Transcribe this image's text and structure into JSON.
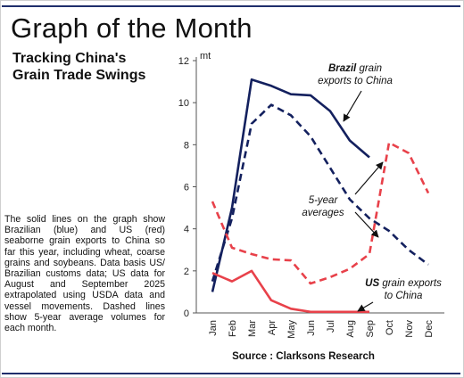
{
  "page_title": "Graph of the Month",
  "subtitle": "Tracking China's Grain Trade Swings",
  "description": "The solid lines on the graph show Brazilian (blue) and US (red) seaborne grain exports to China so far this year, including wheat, coarse grains and soybeans. Data basis US/ Brazilian customs data; US data for August and September 2025 extrapolated using USDA data and vessel movements. Dashed lines show 5-year average volumes for each month.",
  "source": "Source : Clarksons Research",
  "colors": {
    "brazil": "#13205e",
    "us": "#e8414a",
    "rule": "#1f2e6b"
  },
  "chart_data": {
    "type": "line",
    "categories": [
      "Jan",
      "Feb",
      "Mar",
      "Apr",
      "May",
      "Jun",
      "Jul",
      "Aug",
      "Sep",
      "Oct",
      "Nov",
      "Dec"
    ],
    "ylabel": "mt",
    "ylim": [
      0,
      12
    ],
    "yticks": [
      0,
      2,
      4,
      6,
      8,
      10,
      12
    ],
    "grid": false,
    "series": [
      {
        "key": "brazil",
        "style": "solid",
        "color": "#13205e",
        "values": [
          1.0,
          5.0,
          11.1,
          10.8,
          10.4,
          10.35,
          9.6,
          8.2,
          7.4,
          null,
          null,
          null
        ]
      },
      {
        "key": "brazil_avg",
        "style": "dashed",
        "color": "#13205e",
        "values": [
          1.5,
          4.5,
          9.0,
          9.9,
          9.4,
          8.4,
          6.9,
          5.4,
          4.5,
          3.9,
          3.0,
          2.3
        ]
      },
      {
        "key": "us",
        "style": "solid",
        "color": "#e8414a",
        "values": [
          1.9,
          1.5,
          2.0,
          0.6,
          0.2,
          0.05,
          0.05,
          0.05,
          0.05,
          null,
          null,
          null
        ]
      },
      {
        "key": "us_avg",
        "style": "dashed",
        "color": "#e8414a",
        "values": [
          5.3,
          3.1,
          2.8,
          2.55,
          2.5,
          1.4,
          1.7,
          2.1,
          2.8,
          8.1,
          7.6,
          5.7
        ]
      }
    ],
    "annotations": {
      "brazil": [
        "Brazil",
        " grain",
        "exports to China"
      ],
      "averages": [
        "5-year",
        "averages"
      ],
      "us": [
        "US",
        " grain exports",
        "to China"
      ]
    }
  }
}
